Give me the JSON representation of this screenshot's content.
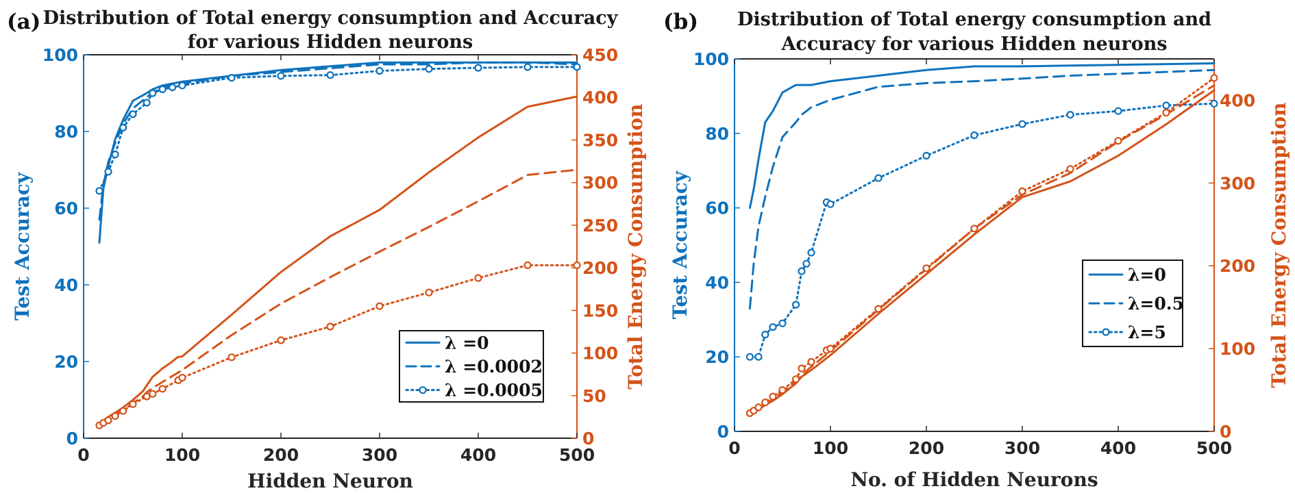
{
  "colors": {
    "accuracy": "#0e72bd",
    "energy": "#d45319",
    "axis": "#262626"
  },
  "chart_data": [
    {
      "type": "line",
      "panel_label": "(a)",
      "title_lines": [
        "Distribution of Total energy consumption and Accuracy",
        "for various Hidden neurons"
      ],
      "xlabel": "Hidden Neuron",
      "ylabel_left": "Test Accuracy",
      "ylabel_right": "Total Energy Consumption",
      "xlim": [
        0,
        500
      ],
      "ylim_left": [
        0,
        100
      ],
      "ylim_right": [
        0,
        450
      ],
      "xticks": [
        0,
        100,
        200,
        300,
        400,
        500
      ],
      "yticks_left": [
        0,
        20,
        40,
        60,
        80,
        100
      ],
      "yticks_right": [
        0,
        50,
        100,
        150,
        200,
        250,
        300,
        350,
        400,
        450
      ],
      "legend_position": "lower-right",
      "legend": [
        {
          "label": "λ =0",
          "style": "solid",
          "marker": false
        },
        {
          "label": "λ =0.0002",
          "style": "dashed",
          "marker": false
        },
        {
          "label": "λ =0.0005",
          "style": "dotted",
          "marker": true
        }
      ],
      "series": [
        {
          "name": "λ =0",
          "axis": "left",
          "style": "solid",
          "marker": false,
          "x": [
            16,
            20,
            25,
            32,
            40,
            50,
            64,
            70,
            80,
            90,
            100,
            150,
            200,
            250,
            300,
            350,
            400,
            450,
            500
          ],
          "y": [
            51,
            65,
            71,
            78,
            83,
            88,
            90,
            91,
            92,
            92.5,
            93,
            94.5,
            96,
            97,
            98,
            98,
            98,
            98,
            98
          ]
        },
        {
          "name": "λ =0.0002",
          "axis": "left",
          "style": "dashed",
          "marker": false,
          "x": [
            16,
            20,
            25,
            32,
            40,
            50,
            64,
            70,
            80,
            90,
            100,
            150,
            200,
            250,
            300,
            350,
            400,
            450,
            500
          ],
          "y": [
            57,
            66,
            72,
            77,
            82,
            86,
            89,
            90,
            91.5,
            92,
            92.5,
            94.5,
            95.5,
            96.5,
            97.5,
            97.5,
            98,
            98,
            97.5
          ]
        },
        {
          "name": "λ =0.0005",
          "axis": "left",
          "style": "dotted",
          "marker": true,
          "x": [
            16,
            25,
            32,
            40,
            50,
            64,
            70,
            80,
            90,
            100,
            150,
            200,
            250,
            300,
            350,
            400,
            450,
            500
          ],
          "y": [
            64.5,
            69.5,
            74,
            81,
            84.5,
            87.5,
            90,
            91,
            91.5,
            92,
            94,
            94.5,
            94.7,
            95.8,
            96.3,
            96.6,
            96.8,
            96.8
          ]
        },
        {
          "name": "λ =0",
          "axis": "right",
          "style": "solid",
          "marker": false,
          "x": [
            16,
            25,
            32,
            40,
            50,
            60,
            64,
            70,
            80,
            90,
            95,
            100,
            150,
            200,
            250,
            300,
            350,
            400,
            450,
            500
          ],
          "y": [
            17,
            25,
            30,
            36,
            45,
            55,
            62,
            72,
            82,
            90,
            95,
            96,
            145,
            195,
            237,
            268,
            312,
            353,
            389,
            401
          ]
        },
        {
          "name": "λ =0.0002",
          "axis": "right",
          "style": "dashed",
          "marker": false,
          "x": [
            16,
            25,
            32,
            40,
            50,
            60,
            64,
            70,
            80,
            90,
            100,
            150,
            200,
            250,
            300,
            350,
            400,
            450,
            500
          ],
          "y": [
            16,
            22,
            27,
            33,
            41,
            49,
            54,
            59,
            66,
            73,
            80,
            121,
            158,
            189,
            219,
            248,
            278,
            309,
            315
          ]
        },
        {
          "name": "λ =0.0005",
          "axis": "right",
          "style": "dotted",
          "marker": true,
          "x": [
            16,
            20,
            25,
            32,
            40,
            50,
            64,
            70,
            80,
            96,
            100,
            150,
            200,
            250,
            300,
            350,
            400,
            450,
            500
          ],
          "y": [
            15,
            18,
            21,
            26,
            32,
            40,
            49,
            52,
            58,
            68,
            71,
            95,
            115,
            131,
            155,
            171,
            188,
            203,
            203
          ]
        }
      ]
    },
    {
      "type": "line",
      "panel_label": "(b)",
      "title_lines": [
        "Distribution of Total energy consumption and",
        "Accuracy for various Hidden neurons"
      ],
      "xlabel": "No. of Hidden Neurons",
      "ylabel_left": "Test Accuracy",
      "ylabel_right": "Total Energy Consumption",
      "xlim": [
        0,
        500
      ],
      "ylim_left": [
        0,
        100
      ],
      "ylim_right": [
        0,
        450
      ],
      "xticks": [
        0,
        100,
        200,
        300,
        400,
        500
      ],
      "yticks_left": [
        0,
        20,
        40,
        60,
        80,
        100
      ],
      "yticks_right": [
        0,
        100,
        200,
        300,
        400
      ],
      "legend_position": "right-center",
      "legend": [
        {
          "label": "λ=0",
          "style": "solid",
          "marker": false
        },
        {
          "label": "λ=0.5",
          "style": "dashed",
          "marker": false
        },
        {
          "label": "λ=5",
          "style": "dotted",
          "marker": true
        }
      ],
      "series": [
        {
          "name": "λ=0",
          "axis": "left",
          "style": "solid",
          "marker": false,
          "x": [
            16,
            20,
            25,
            32,
            40,
            50,
            64,
            70,
            80,
            100,
            150,
            200,
            250,
            300,
            350,
            400,
            450,
            500
          ],
          "y": [
            60,
            65,
            73,
            83,
            86,
            91,
            93,
            93,
            93,
            94,
            95.5,
            97,
            98,
            98,
            98.2,
            98.4,
            98.6,
            98.8
          ]
        },
        {
          "name": "λ=0.5",
          "axis": "left",
          "style": "dashed",
          "marker": false,
          "x": [
            16,
            20,
            25,
            32,
            40,
            50,
            64,
            70,
            80,
            100,
            150,
            200,
            250,
            300,
            350,
            400,
            450,
            500
          ],
          "y": [
            33,
            45,
            55,
            63,
            71,
            79,
            83,
            85,
            87,
            89,
            92.5,
            93.5,
            94,
            94.7,
            95.5,
            96,
            96.5,
            97
          ]
        },
        {
          "name": "λ=5",
          "axis": "left",
          "style": "dotted",
          "marker": true,
          "x": [
            16,
            25,
            32,
            40,
            50,
            64,
            70,
            75,
            80,
            96,
            100,
            150,
            200,
            250,
            300,
            350,
            400,
            450,
            500
          ],
          "y": [
            20,
            20,
            26,
            28,
            29,
            34,
            43,
            45,
            48,
            61.5,
            61,
            68,
            74,
            79.5,
            82.5,
            85,
            86,
            87.5,
            88
          ]
        },
        {
          "name": "λ=0",
          "axis": "right",
          "style": "solid",
          "marker": false,
          "x": [
            16,
            25,
            32,
            40,
            50,
            64,
            70,
            80,
            100,
            150,
            200,
            250,
            300,
            350,
            400,
            450,
            500
          ],
          "y": [
            20,
            26,
            32,
            37,
            45,
            58,
            66,
            74,
            92,
            142,
            190,
            238,
            283,
            302,
            333,
            371,
            412
          ]
        },
        {
          "name": "λ=0.5",
          "axis": "right",
          "style": "dashed",
          "marker": false,
          "x": [
            16,
            25,
            32,
            40,
            50,
            64,
            70,
            80,
            100,
            150,
            200,
            250,
            300,
            350,
            400,
            450,
            500
          ],
          "y": [
            21,
            27,
            33,
            39,
            48,
            60,
            68,
            78,
            97,
            147,
            196,
            245,
            286,
            312,
            350,
            383,
            418
          ]
        },
        {
          "name": "λ=5",
          "axis": "right",
          "style": "dotted",
          "marker": true,
          "x": [
            16,
            20,
            25,
            32,
            40,
            50,
            64,
            70,
            80,
            96,
            100,
            150,
            200,
            250,
            300,
            350,
            400,
            450,
            500
          ],
          "y": [
            22,
            25,
            29,
            35,
            42,
            50,
            63,
            76,
            84,
            98,
            100,
            148,
            197,
            245,
            290,
            317,
            351,
            385,
            427
          ]
        }
      ]
    }
  ]
}
